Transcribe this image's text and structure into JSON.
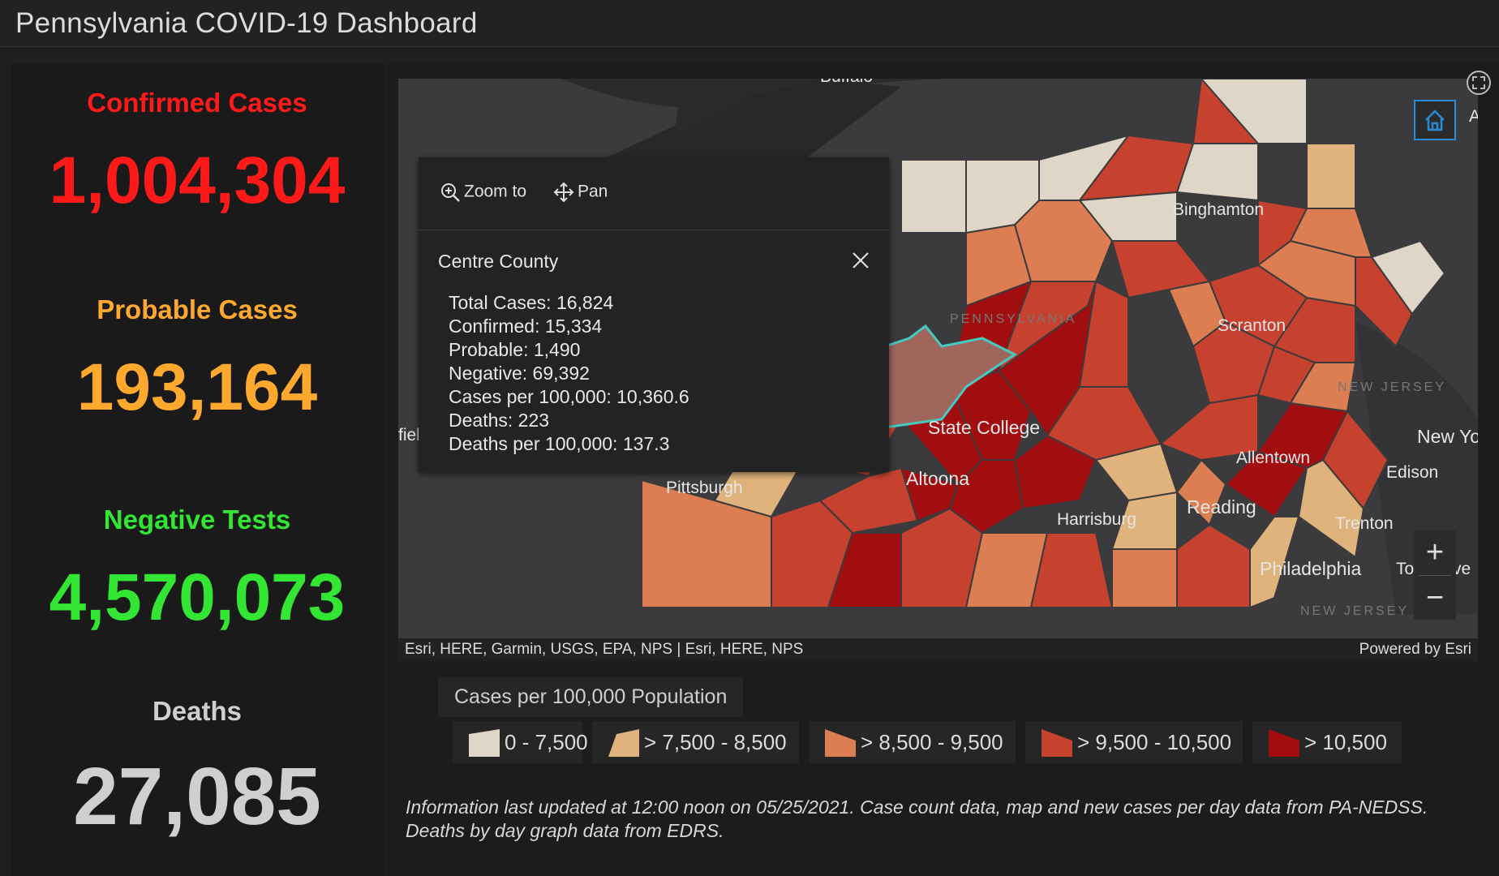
{
  "header": {
    "title": "Pennsylvania COVID-19 Dashboard"
  },
  "stats": [
    {
      "label": "Confirmed Cases",
      "value": "1,004,304",
      "color": "#ff1a1a"
    },
    {
      "label": "Probable Cases",
      "value": "193,164",
      "color": "#ffa82e"
    },
    {
      "label": "Negative Tests",
      "value": "4,570,073",
      "color": "#33e633"
    },
    {
      "label": "Deaths",
      "value": "27,085",
      "color": "#cfcfcf"
    }
  ],
  "popup": {
    "zoom_label": "Zoom to",
    "pan_label": "Pan",
    "title": "Centre County",
    "lines": [
      "Total Cases: 16,824",
      "Confirmed: 15,334",
      "Probable: 1,490",
      "Negative: 69,392",
      "Cases per 100,000: 10,360.6",
      "Deaths: 223",
      "Deaths per 100,000: 137.3"
    ]
  },
  "map": {
    "labels": {
      "buffalo": "Buffalo",
      "binghamton": "Binghamton",
      "scranton": "Scranton",
      "pennsylvania": "PENNSYLVANIA",
      "state_college": "State College",
      "altoona": "Altoona",
      "pittsburgh": "Pittsburgh",
      "harrisburg": "Harrisburg",
      "allentown": "Allentown",
      "reading": "Reading",
      "philadelphia": "Philadelphia",
      "trenton": "Trenton",
      "edison": "Edison",
      "new_york": "New Yo",
      "new_jersey_top": "NEW JERSEY",
      "new_jersey_bottom": "NEW JERSEY",
      "toms_river": "To",
      "toms_river_2": "ve",
      "fiel": "fiel",
      "al": "Al"
    },
    "attribution_left": "Esri, HERE, Garmin, USGS, EPA, NPS | Esri, HERE, NPS",
    "attribution_right": "Powered by Esri",
    "icons": [
      "home-icon",
      "expand-icon",
      "zoom-in-icon",
      "zoom-out-icon",
      "close-icon",
      "zoom-to-icon",
      "pan-icon"
    ]
  },
  "legend": {
    "title": "Cases per 100,000 Population",
    "items": [
      {
        "label": "0 - 7,500",
        "color": "#e0d6c8"
      },
      {
        "label": "> 7,500 - 8,500",
        "color": "#e0b27c"
      },
      {
        "label": "> 8,500 - 9,500",
        "color": "#dc7e52"
      },
      {
        "label": "> 9,500 - 10,500",
        "color": "#c7412f"
      },
      {
        "label": "> 10,500",
        "color": "#a20e10"
      }
    ]
  },
  "footnote": "Information last updated at 12:00 noon on 05/25/2021. Case count data, map and new cases per day data from PA-NEDSS.  Deaths by day graph data from EDRS."
}
